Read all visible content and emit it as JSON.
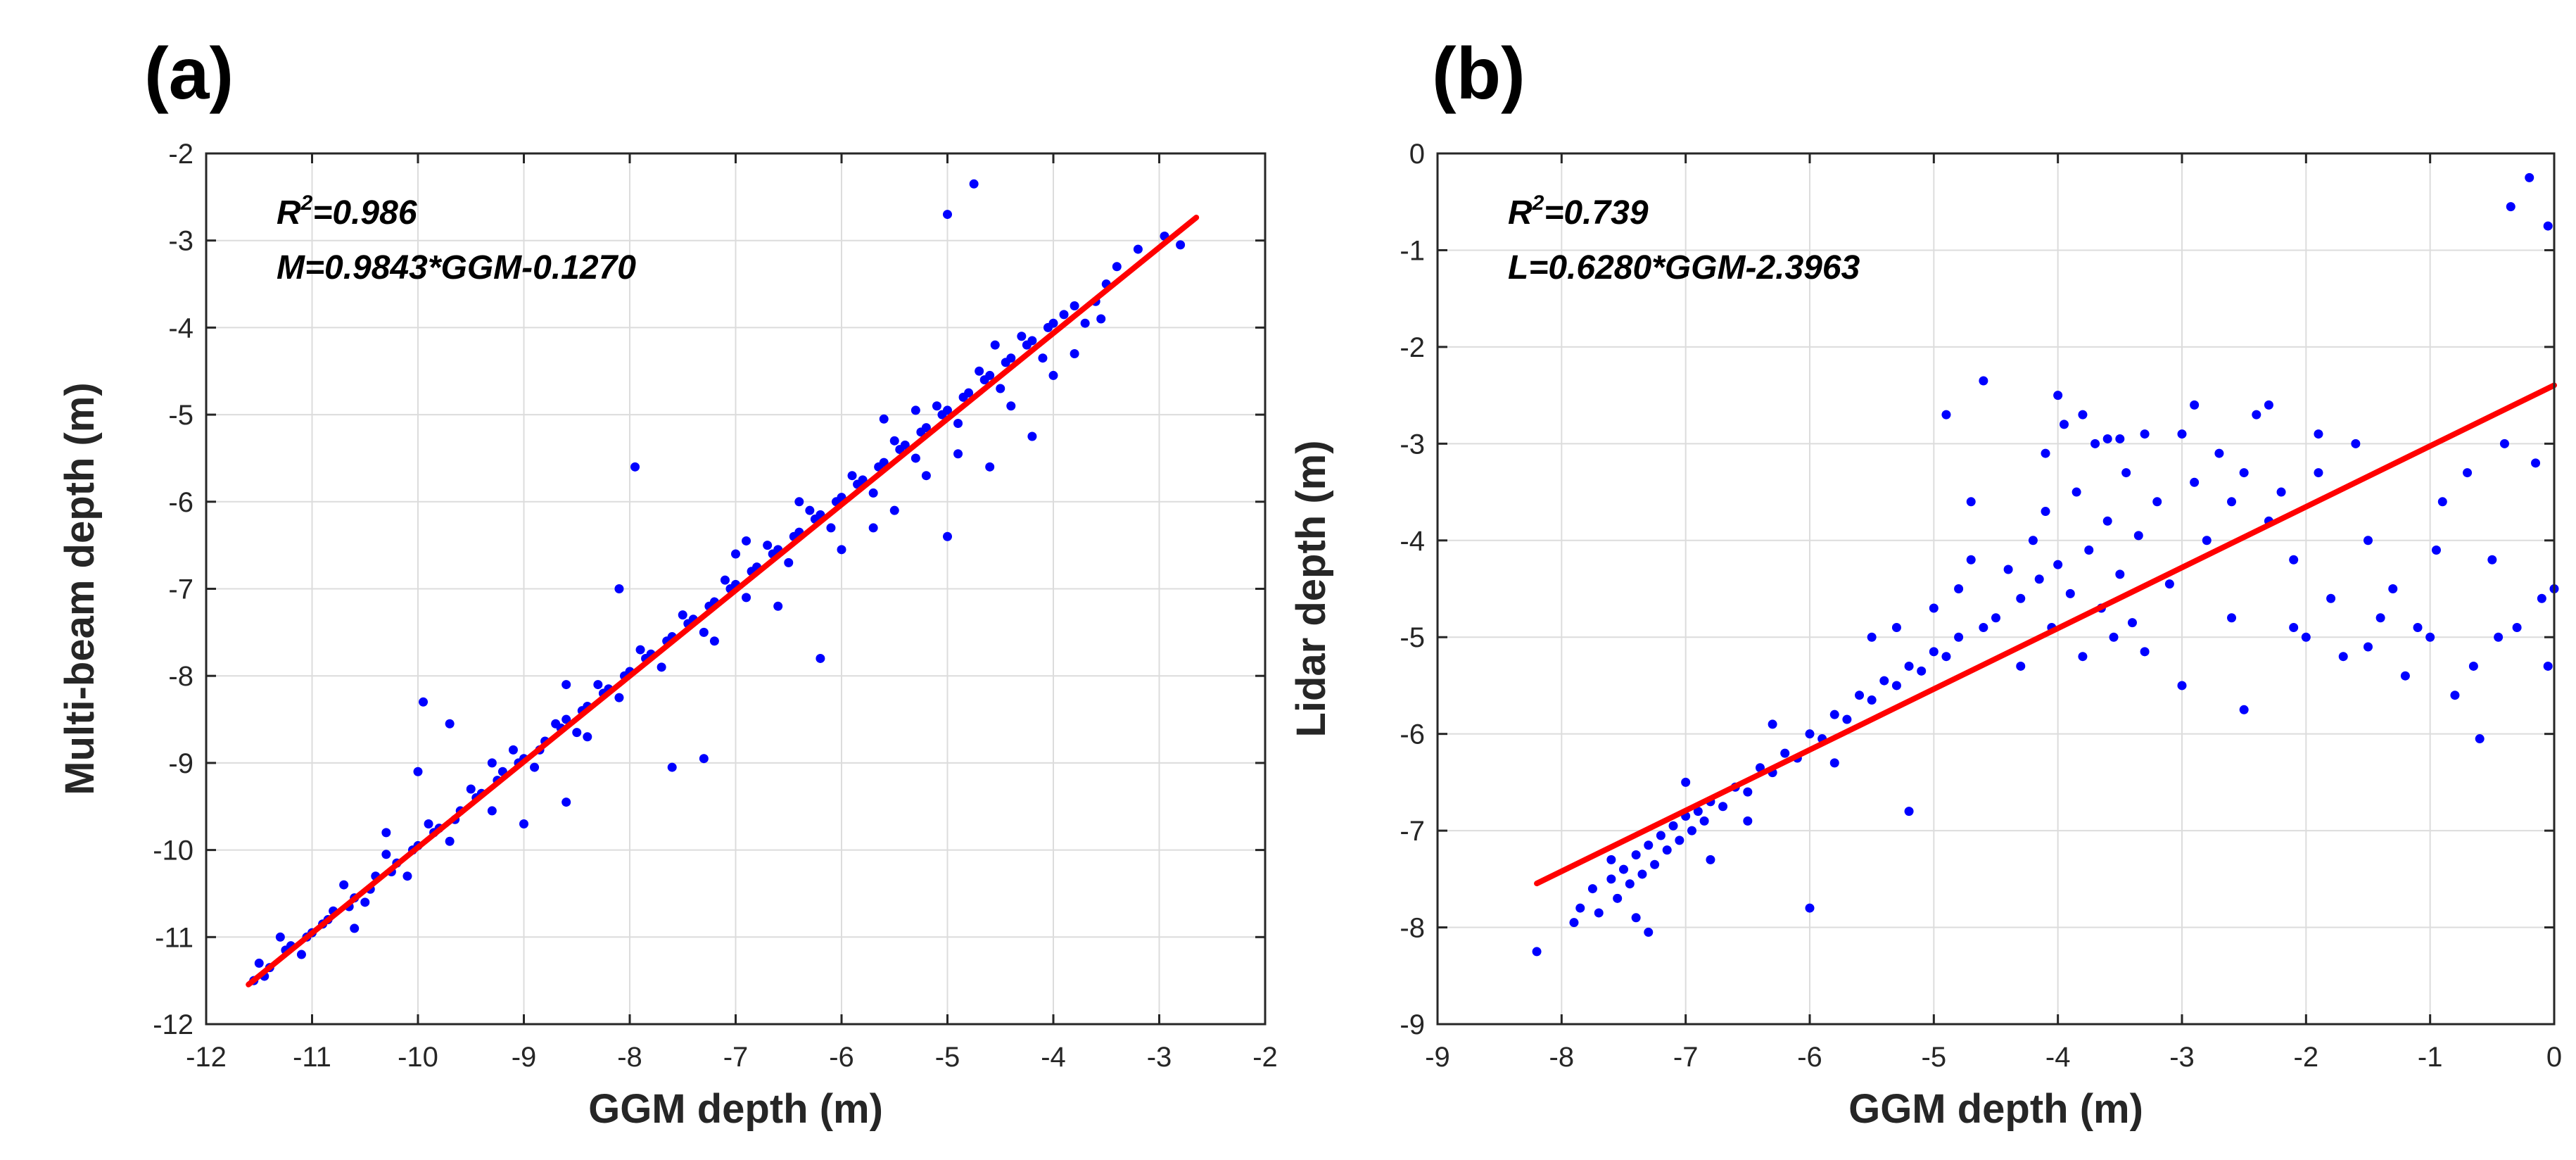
{
  "chart_data": [
    {
      "type": "scatter",
      "panel_label": "(a)",
      "xlabel": "GGM depth (m)",
      "ylabel": "Multi-beam depth (m)",
      "xlim": [
        -12,
        -2
      ],
      "ylim": [
        -12,
        -2
      ],
      "xticks": [
        -12,
        -11,
        -10,
        -9,
        -8,
        -7,
        -6,
        -5,
        -4,
        -3,
        -2
      ],
      "yticks": [
        -12,
        -11,
        -10,
        -9,
        -8,
        -7,
        -6,
        -5,
        -4,
        -3,
        -2
      ],
      "grid": true,
      "annotation": {
        "r2_prefix": "R",
        "r2_sup": "2",
        "r2_value": "=0.986",
        "equation": "M=0.9843*GGM-0.1270"
      },
      "fit_line": {
        "slope": 0.9843,
        "intercept": -0.127,
        "x_range": [
          -11.6,
          -2.65
        ],
        "color": "#ff0000"
      },
      "point_color": "#0000ff",
      "points": [
        [
          -11.55,
          -11.5
        ],
        [
          -11.4,
          -11.35
        ],
        [
          -11.2,
          -11.1
        ],
        [
          -11.0,
          -10.95
        ],
        [
          -10.8,
          -10.7
        ],
        [
          -10.6,
          -10.55
        ],
        [
          -10.4,
          -10.3
        ],
        [
          -10.2,
          -10.15
        ],
        [
          -10.0,
          -9.95
        ],
        [
          -9.8,
          -9.75
        ],
        [
          -9.6,
          -9.55
        ],
        [
          -9.4,
          -9.35
        ],
        [
          -9.2,
          -9.1
        ],
        [
          -9.0,
          -8.95
        ],
        [
          -8.8,
          -8.75
        ],
        [
          -8.6,
          -8.5
        ],
        [
          -8.4,
          -8.35
        ],
        [
          -8.2,
          -8.15
        ],
        [
          -8.0,
          -7.95
        ],
        [
          -7.8,
          -7.75
        ],
        [
          -7.6,
          -7.55
        ],
        [
          -7.4,
          -7.35
        ],
        [
          -7.2,
          -7.15
        ],
        [
          -7.0,
          -6.95
        ],
        [
          -6.8,
          -6.75
        ],
        [
          -6.6,
          -6.55
        ],
        [
          -6.4,
          -6.35
        ],
        [
          -6.2,
          -6.15
        ],
        [
          -6.0,
          -5.95
        ],
        [
          -5.8,
          -5.75
        ],
        [
          -5.6,
          -5.55
        ],
        [
          -5.4,
          -5.35
        ],
        [
          -5.2,
          -5.15
        ],
        [
          -5.0,
          -4.95
        ],
        [
          -4.8,
          -4.75
        ],
        [
          -4.6,
          -4.55
        ],
        [
          -4.4,
          -4.35
        ],
        [
          -4.2,
          -4.15
        ],
        [
          -4.0,
          -3.95
        ],
        [
          -3.8,
          -3.75
        ],
        [
          -3.5,
          -3.5
        ],
        [
          -3.2,
          -3.1
        ],
        [
          -2.95,
          -2.95
        ],
        [
          -2.8,
          -3.05
        ],
        [
          -11.5,
          -11.3
        ],
        [
          -11.3,
          -11.0
        ],
        [
          -11.1,
          -11.2
        ],
        [
          -10.9,
          -10.85
        ],
        [
          -10.7,
          -10.4
        ],
        [
          -10.5,
          -10.6
        ],
        [
          -10.3,
          -10.05
        ],
        [
          -10.1,
          -10.3
        ],
        [
          -9.9,
          -9.7
        ],
        [
          -9.7,
          -9.9
        ],
        [
          -9.5,
          -9.3
        ],
        [
          -9.3,
          -9.55
        ],
        [
          -9.1,
          -8.85
        ],
        [
          -8.9,
          -9.05
        ],
        [
          -8.7,
          -8.55
        ],
        [
          -8.5,
          -8.65
        ],
        [
          -8.3,
          -8.1
        ],
        [
          -8.1,
          -8.25
        ],
        [
          -7.9,
          -7.7
        ],
        [
          -7.7,
          -7.9
        ],
        [
          -7.5,
          -7.3
        ],
        [
          -7.3,
          -7.5
        ],
        [
          -7.1,
          -6.9
        ],
        [
          -6.9,
          -7.1
        ],
        [
          -6.7,
          -6.5
        ],
        [
          -6.5,
          -6.7
        ],
        [
          -6.3,
          -6.1
        ],
        [
          -6.1,
          -6.3
        ],
        [
          -5.9,
          -5.7
        ],
        [
          -5.7,
          -5.9
        ],
        [
          -5.5,
          -5.3
        ],
        [
          -5.3,
          -5.5
        ],
        [
          -5.1,
          -4.9
        ],
        [
          -4.9,
          -5.1
        ],
        [
          -4.7,
          -4.5
        ],
        [
          -4.5,
          -4.7
        ],
        [
          -4.3,
          -4.1
        ],
        [
          -4.1,
          -4.35
        ],
        [
          -3.9,
          -3.85
        ],
        [
          -3.7,
          -3.95
        ],
        [
          -11.45,
          -11.45
        ],
        [
          -11.25,
          -11.15
        ],
        [
          -11.05,
          -11.0
        ],
        [
          -10.85,
          -10.8
        ],
        [
          -10.65,
          -10.65
        ],
        [
          -10.45,
          -10.45
        ],
        [
          -10.25,
          -10.25
        ],
        [
          -10.05,
          -10.0
        ],
        [
          -9.85,
          -9.8
        ],
        [
          -9.65,
          -9.65
        ],
        [
          -9.45,
          -9.4
        ],
        [
          -9.25,
          -9.2
        ],
        [
          -9.05,
          -9.0
        ],
        [
          -8.85,
          -8.85
        ],
        [
          -8.65,
          -8.6
        ],
        [
          -8.45,
          -8.4
        ],
        [
          -8.25,
          -8.2
        ],
        [
          -8.05,
          -8.0
        ],
        [
          -7.85,
          -7.8
        ],
        [
          -7.65,
          -7.6
        ],
        [
          -7.45,
          -7.4
        ],
        [
          -7.25,
          -7.2
        ],
        [
          -7.05,
          -7.0
        ],
        [
          -6.85,
          -6.8
        ],
        [
          -6.65,
          -6.6
        ],
        [
          -6.45,
          -6.4
        ],
        [
          -6.25,
          -6.2
        ],
        [
          -6.05,
          -6.0
        ],
        [
          -5.85,
          -5.8
        ],
        [
          -5.65,
          -5.6
        ],
        [
          -5.45,
          -5.4
        ],
        [
          -5.25,
          -5.2
        ],
        [
          -5.05,
          -5.0
        ],
        [
          -4.85,
          -4.8
        ],
        [
          -4.65,
          -4.6
        ],
        [
          -4.45,
          -4.4
        ],
        [
          -4.25,
          -4.2
        ],
        [
          -4.05,
          -4.0
        ],
        [
          -9.95,
          -8.3
        ],
        [
          -7.95,
          -5.6
        ],
        [
          -4.75,
          -2.35
        ],
        [
          -5.0,
          -2.7
        ],
        [
          -5.0,
          -6.4
        ],
        [
          -6.2,
          -7.8
        ],
        [
          -7.6,
          -9.05
        ],
        [
          -7.3,
          -8.95
        ],
        [
          -10.0,
          -9.1
        ],
        [
          -9.7,
          -8.55
        ],
        [
          -9.0,
          -9.7
        ],
        [
          -8.6,
          -9.45
        ],
        [
          -5.5,
          -6.1
        ],
        [
          -4.9,
          -5.45
        ],
        [
          -4.6,
          -5.6
        ],
        [
          -4.2,
          -5.25
        ],
        [
          -4.0,
          -4.55
        ],
        [
          -3.8,
          -4.3
        ],
        [
          -6.6,
          -7.2
        ],
        [
          -6.9,
          -6.45
        ],
        [
          -8.1,
          -7.0
        ],
        [
          -8.6,
          -8.1
        ],
        [
          -5.7,
          -6.3
        ],
        [
          -5.6,
          -5.05
        ],
        [
          -4.4,
          -4.9
        ],
        [
          -4.55,
          -4.2
        ],
        [
          -10.3,
          -9.8
        ],
        [
          -10.6,
          -10.9
        ],
        [
          -9.3,
          -9.0
        ],
        [
          -8.4,
          -8.7
        ],
        [
          -6.4,
          -6.0
        ],
        [
          -6.0,
          -6.55
        ],
        [
          -5.3,
          -4.95
        ],
        [
          -5.2,
          -5.7
        ],
        [
          -7.2,
          -7.6
        ],
        [
          -7.0,
          -6.6
        ],
        [
          -3.6,
          -3.7
        ],
        [
          -3.4,
          -3.3
        ],
        [
          -3.55,
          -3.9
        ]
      ]
    },
    {
      "type": "scatter",
      "panel_label": "(b)",
      "xlabel": "GGM depth (m)",
      "ylabel": "Lidar depth (m)",
      "xlim": [
        -9,
        0
      ],
      "ylim": [
        -9,
        0
      ],
      "xticks": [
        -9,
        -8,
        -7,
        -6,
        -5,
        -4,
        -3,
        -2,
        -1,
        0
      ],
      "yticks": [
        -9,
        -8,
        -7,
        -6,
        -5,
        -4,
        -3,
        -2,
        -1,
        0
      ],
      "grid": true,
      "annotation": {
        "r2_prefix": "R",
        "r2_sup": "2",
        "r2_value": "=0.739",
        "equation": "L=0.6280*GGM-2.3963"
      },
      "fit_line": {
        "slope": 0.628,
        "intercept": -2.3963,
        "x_range": [
          -8.2,
          0
        ],
        "color": "#ff0000"
      },
      "point_color": "#0000ff",
      "points": [
        [
          -8.2,
          -8.25
        ],
        [
          -7.9,
          -7.95
        ],
        [
          -7.85,
          -7.8
        ],
        [
          -7.75,
          -7.6
        ],
        [
          -7.7,
          -7.85
        ],
        [
          -7.6,
          -7.5
        ],
        [
          -7.55,
          -7.7
        ],
        [
          -7.5,
          -7.4
        ],
        [
          -7.45,
          -7.55
        ],
        [
          -7.4,
          -7.25
        ],
        [
          -7.35,
          -7.45
        ],
        [
          -7.3,
          -7.15
        ],
        [
          -7.25,
          -7.35
        ],
        [
          -7.2,
          -7.05
        ],
        [
          -7.15,
          -7.2
        ],
        [
          -7.1,
          -6.95
        ],
        [
          -7.05,
          -7.1
        ],
        [
          -7.0,
          -6.85
        ],
        [
          -6.95,
          -7.0
        ],
        [
          -6.9,
          -6.8
        ],
        [
          -6.85,
          -6.9
        ],
        [
          -6.8,
          -6.7
        ],
        [
          -6.7,
          -6.75
        ],
        [
          -6.6,
          -6.55
        ],
        [
          -6.5,
          -6.6
        ],
        [
          -6.4,
          -6.35
        ],
        [
          -6.3,
          -6.4
        ],
        [
          -6.2,
          -6.2
        ],
        [
          -6.1,
          -6.25
        ],
        [
          -6.0,
          -6.0
        ],
        [
          -5.9,
          -6.05
        ],
        [
          -5.8,
          -5.8
        ],
        [
          -5.7,
          -5.85
        ],
        [
          -5.6,
          -5.6
        ],
        [
          -5.5,
          -5.65
        ],
        [
          -5.4,
          -5.45
        ],
        [
          -5.3,
          -5.5
        ],
        [
          -5.2,
          -5.3
        ],
        [
          -5.1,
          -5.35
        ],
        [
          -5.0,
          -5.15
        ],
        [
          -4.9,
          -5.2
        ],
        [
          -4.8,
          -5.0
        ],
        [
          -7.4,
          -7.9
        ],
        [
          -7.3,
          -8.05
        ],
        [
          -7.6,
          -7.3
        ],
        [
          -7.0,
          -6.5
        ],
        [
          -6.8,
          -7.3
        ],
        [
          -6.5,
          -6.9
        ],
        [
          -6.0,
          -7.8
        ],
        [
          -5.2,
          -6.8
        ],
        [
          -5.8,
          -6.3
        ],
        [
          -6.3,
          -5.9
        ],
        [
          -5.5,
          -5.0
        ],
        [
          -5.3,
          -4.9
        ],
        [
          -5.0,
          -4.7
        ],
        [
          -4.8,
          -4.5
        ],
        [
          -4.7,
          -4.2
        ],
        [
          -4.6,
          -2.35
        ],
        [
          -4.5,
          -4.8
        ],
        [
          -4.4,
          -4.3
        ],
        [
          -4.3,
          -4.6
        ],
        [
          -4.2,
          -4.0
        ],
        [
          -4.15,
          -4.4
        ],
        [
          -4.1,
          -3.7
        ],
        [
          -4.05,
          -4.9
        ],
        [
          -4.0,
          -4.25
        ],
        [
          -3.95,
          -2.8
        ],
        [
          -3.9,
          -4.55
        ],
        [
          -3.85,
          -3.5
        ],
        [
          -3.8,
          -5.2
        ],
        [
          -3.75,
          -4.1
        ],
        [
          -3.7,
          -3.0
        ],
        [
          -3.65,
          -4.7
        ],
        [
          -3.6,
          -3.8
        ],
        [
          -3.55,
          -5.0
        ],
        [
          -3.5,
          -4.35
        ],
        [
          -3.45,
          -3.3
        ],
        [
          -3.4,
          -4.85
        ],
        [
          -3.35,
          -3.95
        ],
        [
          -3.3,
          -5.15
        ],
        [
          -3.2,
          -3.6
        ],
        [
          -3.1,
          -4.45
        ],
        [
          -3.0,
          -2.9
        ],
        [
          -2.9,
          -3.4
        ],
        [
          -2.8,
          -4.0
        ],
        [
          -2.7,
          -3.1
        ],
        [
          -2.6,
          -4.8
        ],
        [
          -2.5,
          -3.3
        ],
        [
          -2.4,
          -2.7
        ],
        [
          -2.3,
          -3.8
        ],
        [
          -2.2,
          -3.5
        ],
        [
          -2.1,
          -4.2
        ],
        [
          -2.0,
          -5.0
        ],
        [
          -1.9,
          -2.9
        ],
        [
          -1.8,
          -4.6
        ],
        [
          -1.7,
          -5.2
        ],
        [
          -1.6,
          -3.0
        ],
        [
          -1.5,
          -4.0
        ],
        [
          -1.4,
          -4.8
        ],
        [
          -1.2,
          -5.4
        ],
        [
          -1.0,
          -5.0
        ],
        [
          -0.9,
          -3.6
        ],
        [
          -0.8,
          -5.6
        ],
        [
          -0.7,
          -3.3
        ],
        [
          -0.6,
          -6.05
        ],
        [
          -0.5,
          -4.2
        ],
        [
          -0.4,
          -3.0
        ],
        [
          -0.35,
          -0.55
        ],
        [
          -0.2,
          -0.25
        ],
        [
          -0.05,
          -0.75
        ],
        [
          -0.1,
          -4.6
        ],
        [
          -0.05,
          -5.3
        ],
        [
          0.0,
          -4.5
        ],
        [
          -0.3,
          -4.9
        ],
        [
          -0.15,
          -3.2
        ],
        [
          -2.5,
          -5.75
        ],
        [
          -3.0,
          -5.5
        ],
        [
          -4.6,
          -4.9
        ],
        [
          -4.3,
          -5.3
        ],
        [
          -4.0,
          -2.5
        ],
        [
          -3.6,
          -2.95
        ],
        [
          -3.3,
          -2.9
        ],
        [
          -2.9,
          -2.6
        ],
        [
          -2.3,
          -2.6
        ],
        [
          -1.9,
          -3.3
        ],
        [
          -1.5,
          -5.1
        ],
        [
          -4.9,
          -2.7
        ],
        [
          -4.7,
          -3.6
        ],
        [
          -4.1,
          -3.1
        ],
        [
          -3.8,
          -2.7
        ],
        [
          -3.5,
          -2.95
        ],
        [
          -2.6,
          -3.6
        ],
        [
          -2.1,
          -4.9
        ],
        [
          -1.3,
          -4.5
        ],
        [
          -1.1,
          -4.9
        ],
        [
          -0.95,
          -4.1
        ],
        [
          -0.65,
          -5.3
        ],
        [
          -0.45,
          -5.0
        ]
      ]
    }
  ]
}
